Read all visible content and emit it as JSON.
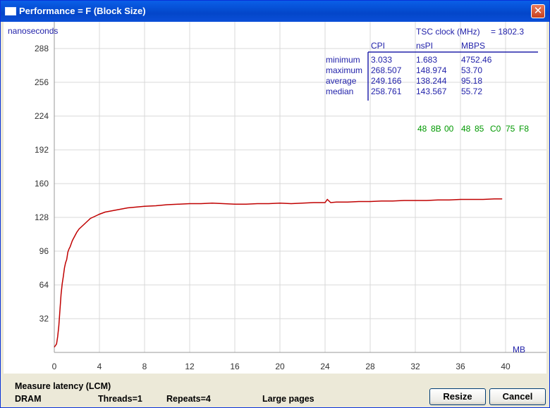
{
  "window": {
    "title": "Performance = F (Block Size)",
    "close_glyph": "✕"
  },
  "chart_data": {
    "type": "line",
    "ylabel": "nanoseconds",
    "xlabel": "MB",
    "xlim": [
      0,
      44
    ],
    "ylim": [
      0,
      304
    ],
    "x_ticks": [
      0,
      4,
      8,
      12,
      16,
      20,
      24,
      28,
      32,
      36,
      40
    ],
    "y_ticks": [
      32,
      64,
      96,
      128,
      160,
      192,
      224,
      256,
      288
    ],
    "grid": true,
    "series": [
      {
        "color": "#c00000",
        "x": [
          0,
          0.2,
          0.3,
          0.4,
          0.5,
          0.6,
          0.7,
          0.8,
          0.9,
          1.0,
          1.1,
          1.2,
          1.3,
          1.4,
          1.5,
          1.6,
          1.7,
          1.8,
          1.9,
          2.0,
          2.2,
          2.4,
          2.6,
          2.8,
          3.0,
          3.2,
          3.4,
          3.6,
          3.8,
          4.0,
          4.5,
          5.0,
          5.5,
          6.0,
          6.5,
          7.0,
          7.5,
          8.0,
          9,
          10,
          11,
          12,
          13,
          14,
          15,
          16,
          17,
          18,
          19,
          20,
          21,
          22,
          23,
          24,
          24.2,
          24.5,
          25,
          26,
          27,
          28,
          29,
          30,
          31,
          32,
          33,
          34,
          35,
          36,
          37,
          38,
          39,
          39.7
        ],
        "y": [
          5,
          8,
          15,
          25,
          40,
          55,
          65,
          72,
          80,
          85,
          88,
          95,
          98,
          100,
          103,
          106,
          108,
          110,
          112,
          114,
          117,
          119,
          121,
          123,
          125,
          127,
          128,
          129,
          130,
          131,
          133,
          134,
          135,
          136,
          137,
          137.5,
          138,
          138.5,
          139,
          140,
          140.5,
          141,
          141,
          141.5,
          141,
          140.5,
          140.5,
          141,
          141,
          141.5,
          141,
          141.5,
          142,
          142,
          145,
          142,
          142.5,
          142.5,
          143,
          143,
          143.5,
          143.5,
          144,
          144,
          144,
          144.5,
          144.5,
          145,
          145,
          145,
          145.5,
          145.5
        ]
      }
    ]
  },
  "stats": {
    "tsc_label": "TSC clock (MHz)",
    "tsc_value": "= 1802.3",
    "headers": [
      "CPI",
      "nsPI",
      "MBPS"
    ],
    "rows": [
      {
        "label": "minimum",
        "cpi": "3.033",
        "nspi": "1.683",
        "mbps": "4752.46"
      },
      {
        "label": "maximum",
        "cpi": "268.507",
        "nspi": "148.974",
        "mbps": "53.70"
      },
      {
        "label": "average",
        "cpi": "249.166",
        "nspi": "138.244",
        "mbps": "95.18"
      },
      {
        "label": "median",
        "cpi": "258.761",
        "nspi": "143.567",
        "mbps": "55.72"
      }
    ],
    "opcode_bytes": [
      "48",
      "8B",
      "00",
      "48",
      "85",
      "C0",
      "75",
      "F8"
    ]
  },
  "status": {
    "mode": "Measure latency (LCM)",
    "memory": "DRAM",
    "threads": "Threads=1",
    "repeats": "Repeats=4",
    "pages": "Large pages"
  },
  "buttons": {
    "resize": "Resize",
    "cancel": "Cancel"
  },
  "colors": {
    "axis_text": "#2222aa",
    "tick_text": "#333333",
    "grid": "#d8d8d8",
    "series": "#c00000",
    "opcodes": "#009900"
  }
}
